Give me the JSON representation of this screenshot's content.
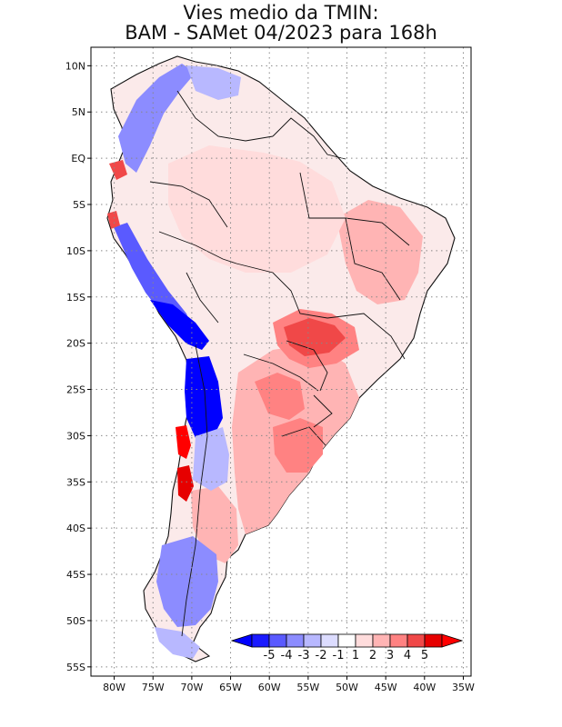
{
  "title": {
    "line1": "Vies medio da TMIN:",
    "line2": "BAM - SAMet 04/2023  para 168h"
  },
  "map": {
    "lon_range": [
      -83,
      -34
    ],
    "lat_range": [
      -56,
      12
    ],
    "lat_ticks": [
      {
        "lat": 10,
        "label": "10N"
      },
      {
        "lat": 5,
        "label": "5N"
      },
      {
        "lat": 0,
        "label": "EQ"
      },
      {
        "lat": -5,
        "label": "5S"
      },
      {
        "lat": -10,
        "label": "10S"
      },
      {
        "lat": -15,
        "label": "15S"
      },
      {
        "lat": -20,
        "label": "20S"
      },
      {
        "lat": -25,
        "label": "25S"
      },
      {
        "lat": -30,
        "label": "30S"
      },
      {
        "lat": -35,
        "label": "35S"
      },
      {
        "lat": -40,
        "label": "40S"
      },
      {
        "lat": -45,
        "label": "45S"
      },
      {
        "lat": -50,
        "label": "50S"
      },
      {
        "lat": -55,
        "label": "55S"
      }
    ],
    "lon_ticks": [
      {
        "lon": -80,
        "label": "80W"
      },
      {
        "lon": -75,
        "label": "75W"
      },
      {
        "lon": -70,
        "label": "70W"
      },
      {
        "lon": -65,
        "label": "65W"
      },
      {
        "lon": -60,
        "label": "60W"
      },
      {
        "lon": -55,
        "label": "55W"
      },
      {
        "lon": -50,
        "label": "50W"
      },
      {
        "lon": -45,
        "label": "45W"
      },
      {
        "lon": -40,
        "label": "40W"
      },
      {
        "lon": -35,
        "label": "35W"
      }
    ],
    "grid": "dotted"
  },
  "colorbar": {
    "labels": [
      "-5",
      "-4",
      "-3",
      "-2",
      "-1",
      "1",
      "2",
      "3",
      "4",
      "5"
    ],
    "colors": [
      "#1a1aff",
      "#5a5aff",
      "#8c8cff",
      "#b8b8ff",
      "#dcdcff",
      "#ffffff",
      "#ffdcdc",
      "#ffb4b4",
      "#ff8282",
      "#f04848",
      "#e60000"
    ],
    "min_color": "#0000ff",
    "max_color": "#ff0000"
  }
}
